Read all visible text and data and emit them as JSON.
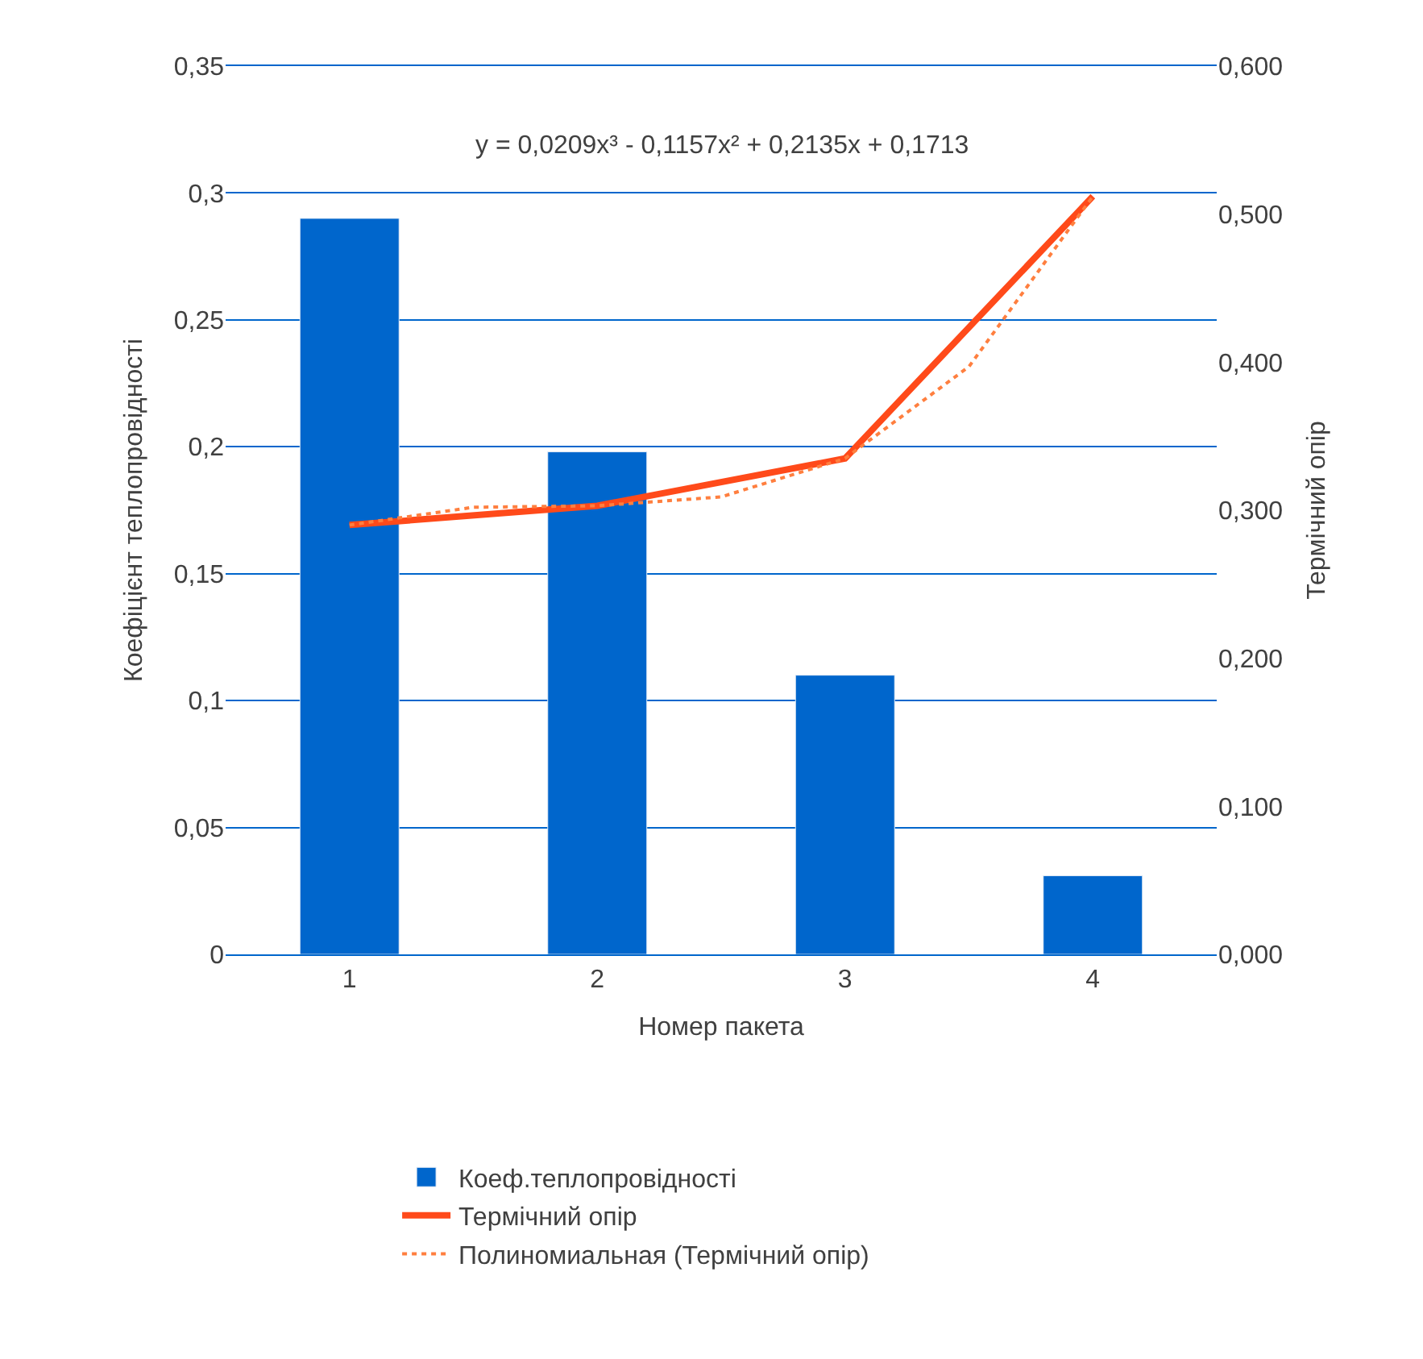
{
  "chart_data": {
    "type": "bar",
    "xlabel": "Номер пакета",
    "ylabel": "Коефіцієнт теплопровідності",
    "y2label": "Термічний опір",
    "x": [
      1,
      2,
      3,
      4
    ],
    "xlim": [
      0.5,
      4.5
    ],
    "xticks": [
      1,
      2,
      3,
      4
    ],
    "ylim": [
      0,
      0.35
    ],
    "yticks": [
      {
        "value": 0,
        "label": "0"
      },
      {
        "value": 0.05,
        "label": "0,05"
      },
      {
        "value": 0.1,
        "label": "0,1"
      },
      {
        "value": 0.15,
        "label": "0,15"
      },
      {
        "value": 0.2,
        "label": "0,2"
      },
      {
        "value": 0.25,
        "label": "0,25"
      },
      {
        "value": 0.3,
        "label": "0,3"
      },
      {
        "value": 0.35,
        "label": "0,35"
      }
    ],
    "y2lim": [
      0,
      0.6
    ],
    "y2ticks": [
      {
        "value": 0,
        "label": "0,000"
      },
      {
        "value": 0.1,
        "label": "0,100"
      },
      {
        "value": 0.2,
        "label": "0,200"
      },
      {
        "value": 0.3,
        "label": "0,300"
      },
      {
        "value": 0.4,
        "label": "0,400"
      },
      {
        "value": 0.5,
        "label": "0,500"
      },
      {
        "value": 0.6,
        "label": "0,600"
      }
    ],
    "grid": "y",
    "legend": "bottom",
    "series": [
      {
        "name": "Коеф.теплопровідності",
        "color": "#0066cc",
        "values": [
          0.29,
          0.198,
          0.11,
          0.031
        ]
      },
      {
        "name": "Термічний опір",
        "type": "line",
        "axis": "y2",
        "color": "#ff4a1a",
        "line_style": "solid",
        "values": [
          0.29,
          0.303,
          0.335,
          0.512
        ]
      },
      {
        "name": "Полиномиальная (Термічний опір)",
        "type": "line",
        "axis": "y2",
        "color": "#ff7f3f",
        "line_style": "dotted",
        "x": [
          1,
          1.5,
          2,
          2.5,
          3,
          3.5,
          4
        ],
        "values": [
          0.29,
          0.302,
          0.303,
          0.309,
          0.335,
          0.397,
          0.512
        ]
      }
    ],
    "annotations": [
      "y = 0,0209x³ - 0,1157x² + 0,2135x + 0,1713"
    ]
  }
}
